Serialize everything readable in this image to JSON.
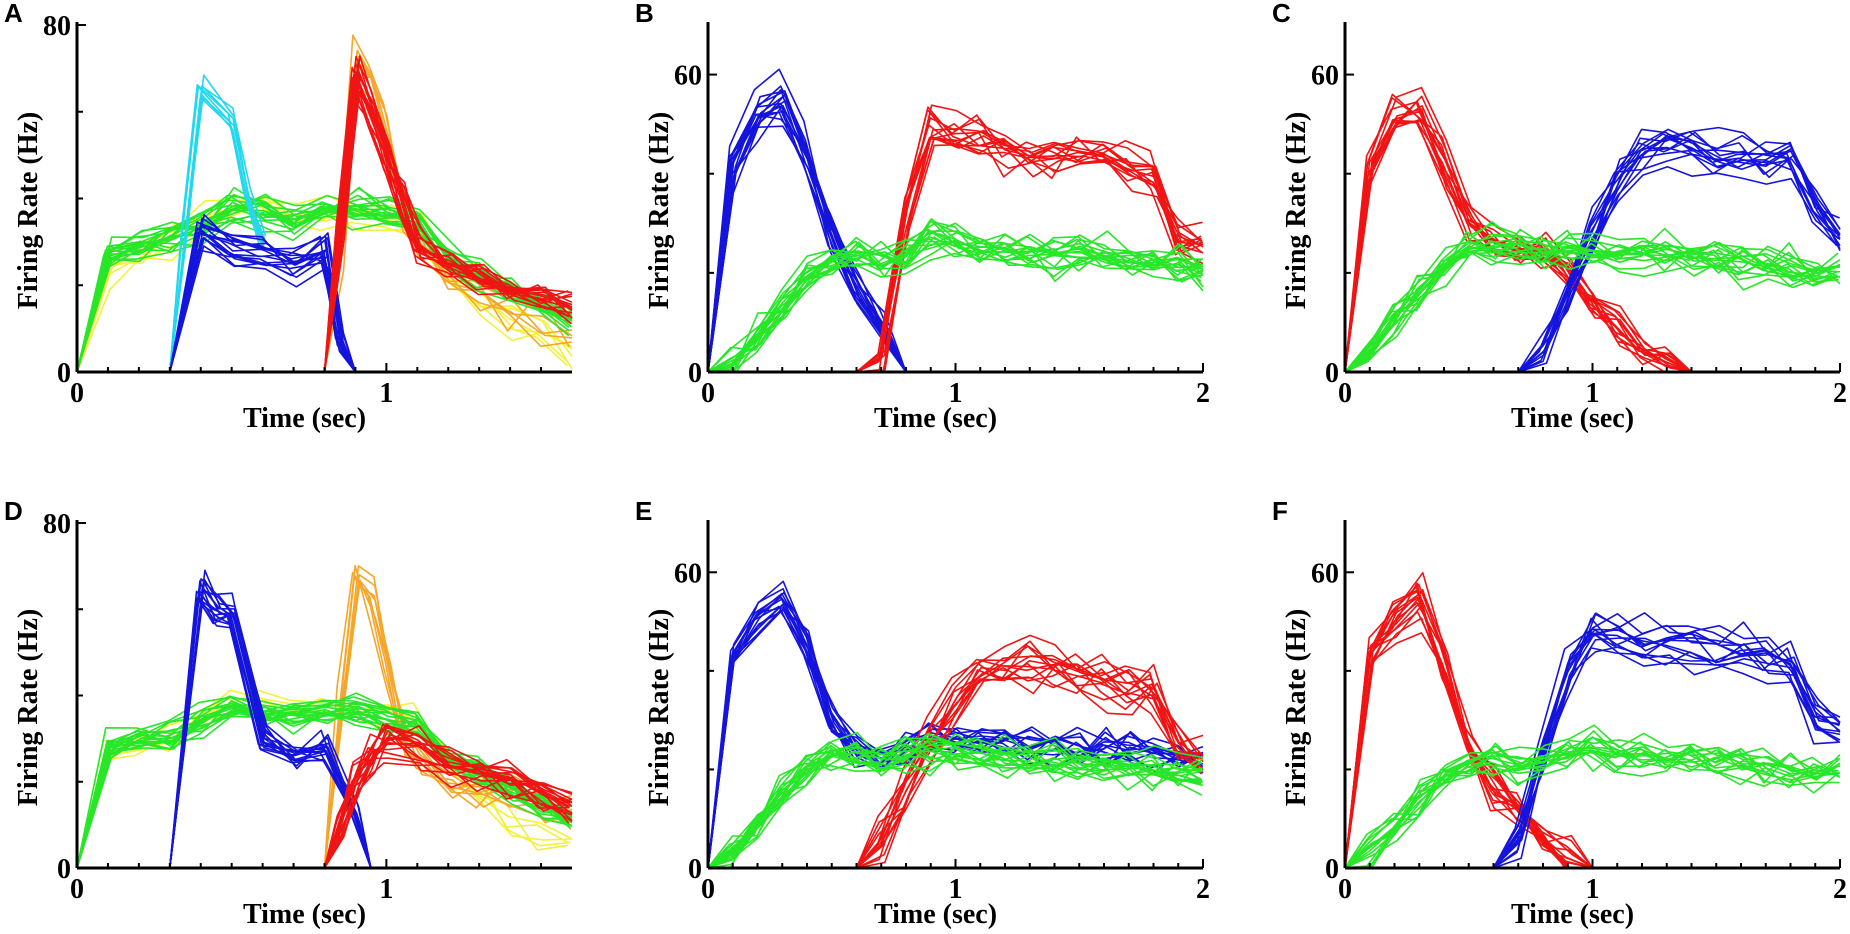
{
  "colors": {
    "cyan": "#22d8ee",
    "blue": "#1414dc",
    "red": "#f01414",
    "green": "#28e628",
    "yellow": "#f2f23a",
    "orange": "#f5a62b"
  },
  "chart_data": [
    {
      "panel": "A",
      "type": "line",
      "xlabel": "Time (sec)",
      "ylabel": "Firing Rate (Hz)",
      "xlim": [
        0,
        1.6
      ],
      "ylim": [
        0,
        80
      ],
      "xticks": [
        0,
        1
      ],
      "xtick_labels": [
        "0",
        "1"
      ],
      "yticks": [
        0,
        80
      ],
      "ytick_labels": [
        "0",
        "80"
      ],
      "yminor": [
        20,
        40,
        60
      ],
      "families": [
        {
          "color": "yellow",
          "count": 6,
          "spread": 3,
          "x": [
            0,
            0.1,
            0.2,
            0.3,
            0.4,
            0.5,
            0.6,
            0.7,
            0.8,
            0.9,
            1.0,
            1.1,
            1.2,
            1.3,
            1.4,
            1.5,
            1.6
          ],
          "y": [
            0,
            24,
            27,
            30,
            34,
            37,
            38,
            36,
            36,
            36,
            36,
            34,
            22,
            16,
            11,
            8,
            4
          ]
        },
        {
          "color": "orange",
          "count": 6,
          "spread": 4,
          "x": [
            0,
            0.7,
            0.8,
            0.85,
            0.9,
            0.95,
            1.0,
            1.05,
            1.1,
            1.2,
            1.3,
            1.4,
            1.5,
            1.6
          ],
          "y": [
            0,
            0,
            0,
            28,
            73,
            68,
            56,
            40,
            30,
            22,
            18,
            14,
            12,
            10
          ]
        },
        {
          "color": "green",
          "count": 20,
          "spread": 2.5,
          "x": [
            0,
            0.1,
            0.2,
            0.3,
            0.4,
            0.5,
            0.6,
            0.7,
            0.8,
            0.9,
            1.0,
            1.1,
            1.2,
            1.3,
            1.4,
            1.5,
            1.6
          ],
          "y": [
            0,
            27,
            29,
            31,
            34,
            38,
            37,
            35,
            37,
            38,
            37,
            36,
            26,
            22,
            18,
            15,
            12
          ]
        },
        {
          "color": "cyan",
          "count": 8,
          "spread": 1.8,
          "x": [
            0,
            0.3,
            0.35,
            0.4,
            0.5,
            0.55,
            0.6
          ],
          "y": [
            0,
            0,
            32,
            64,
            57,
            40,
            28
          ]
        },
        {
          "color": "blue",
          "count": 16,
          "spread": 3,
          "x": [
            0,
            0.2,
            0.3,
            0.4,
            0.5,
            0.6,
            0.7,
            0.8,
            0.85,
            0.9,
            1.0
          ],
          "y": [
            0,
            0,
            0,
            33,
            29,
            27,
            25,
            28,
            7,
            0,
            0
          ]
        },
        {
          "color": "red",
          "count": 18,
          "spread": 3,
          "x": [
            0,
            0.8,
            0.85,
            0.9,
            0.95,
            1.0,
            1.05,
            1.1,
            1.2,
            1.3,
            1.4,
            1.5,
            1.6
          ],
          "y": [
            0,
            0,
            34,
            69,
            60,
            50,
            40,
            29,
            25,
            22,
            19,
            17,
            15
          ]
        }
      ]
    },
    {
      "panel": "B",
      "type": "line",
      "xlabel": "Time (sec)",
      "ylabel": "Firing Rate (Hz)",
      "xlim": [
        0,
        2
      ],
      "ylim": [
        0,
        70
      ],
      "xticks": [
        0,
        1,
        2
      ],
      "xtick_labels": [
        "0",
        "1",
        "2"
      ],
      "yticks": [
        0,
        60
      ],
      "ytick_labels": [
        "0",
        "60"
      ],
      "yminor": [
        20,
        40
      ],
      "families": [
        {
          "color": "blue",
          "count": 16,
          "spread": 3,
          "x": [
            0,
            0.1,
            0.2,
            0.3,
            0.4,
            0.5,
            0.6,
            0.7,
            0.8,
            0.9
          ],
          "y": [
            0,
            42,
            52,
            55,
            44,
            27,
            17,
            10,
            0,
            0
          ]
        },
        {
          "color": "red",
          "count": 14,
          "spread": 3,
          "x": [
            0,
            0.6,
            0.7,
            0.8,
            0.9,
            1.0,
            1.1,
            1.2,
            1.3,
            1.4,
            1.5,
            1.6,
            1.7,
            1.8,
            1.9,
            2.0
          ],
          "y": [
            0,
            0,
            2,
            32,
            50,
            47,
            47,
            45,
            44,
            43,
            44,
            44,
            42,
            39,
            27,
            25
          ]
        },
        {
          "color": "green",
          "count": 18,
          "spread": 3,
          "x": [
            0,
            0.1,
            0.2,
            0.3,
            0.4,
            0.5,
            0.6,
            0.7,
            0.8,
            0.9,
            1.0,
            1.1,
            1.2,
            1.3,
            1.4,
            1.5,
            1.6,
            1.7,
            1.8,
            1.9,
            2.0
          ],
          "y": [
            0,
            2,
            7,
            13,
            19,
            22,
            23,
            22,
            23,
            27,
            26,
            25,
            24,
            24,
            23,
            23,
            23,
            22,
            22,
            21,
            20
          ]
        }
      ]
    },
    {
      "panel": "C",
      "type": "line",
      "xlabel": "Time (sec)",
      "ylabel": "Firing Rate (Hz)",
      "xlim": [
        0,
        2
      ],
      "ylim": [
        0,
        70
      ],
      "xticks": [
        0,
        1,
        2
      ],
      "xtick_labels": [
        "0",
        "1",
        "2"
      ],
      "yticks": [
        0,
        60
      ],
      "ytick_labels": [
        "0",
        "60"
      ],
      "yminor": [
        20,
        40
      ],
      "families": [
        {
          "color": "red",
          "count": 14,
          "spread": 3,
          "x": [
            0,
            0.1,
            0.2,
            0.3,
            0.4,
            0.5,
            0.6,
            0.7,
            0.8,
            0.9,
            1.0,
            1.1,
            1.2,
            1.3,
            1.4,
            1.5
          ],
          "y": [
            0,
            40,
            50,
            52,
            42,
            30,
            26,
            25,
            24,
            20,
            14,
            9,
            5,
            2,
            0,
            0
          ]
        },
        {
          "color": "blue",
          "count": 14,
          "spread": 3,
          "x": [
            0,
            0.7,
            0.8,
            0.9,
            1.0,
            1.1,
            1.2,
            1.3,
            1.4,
            1.5,
            1.6,
            1.7,
            1.8,
            1.9,
            2.0
          ],
          "y": [
            0,
            0,
            4,
            16,
            28,
            38,
            44,
            45,
            45,
            44,
            43,
            42,
            43,
            33,
            27
          ]
        },
        {
          "color": "green",
          "count": 18,
          "spread": 3,
          "x": [
            0,
            0.1,
            0.2,
            0.3,
            0.4,
            0.5,
            0.6,
            0.7,
            0.8,
            0.9,
            1.0,
            1.1,
            1.2,
            1.3,
            1.4,
            1.5,
            1.6,
            1.7,
            1.8,
            1.9,
            2.0
          ],
          "y": [
            0,
            4,
            10,
            16,
            21,
            25,
            26,
            26,
            25,
            25,
            24,
            24,
            24,
            24,
            23,
            23,
            22,
            22,
            21,
            20,
            20
          ]
        }
      ]
    },
    {
      "panel": "D",
      "type": "line",
      "xlabel": "Time (sec)",
      "ylabel": "Firing Rate (Hz)",
      "xlim": [
        0,
        1.6
      ],
      "ylim": [
        0,
        80
      ],
      "xticks": [
        0,
        1
      ],
      "xtick_labels": [
        "0",
        "1"
      ],
      "yticks": [
        0,
        80
      ],
      "ytick_labels": [
        "0",
        "80"
      ],
      "yminor": [
        20,
        40,
        60
      ],
      "families": [
        {
          "color": "yellow",
          "count": 5,
          "spread": 3,
          "x": [
            0,
            0.1,
            0.2,
            0.3,
            0.4,
            0.5,
            0.6,
            0.7,
            0.8,
            0.9,
            1.0,
            1.1,
            1.2,
            1.3,
            1.4,
            1.5,
            1.6
          ],
          "y": [
            0,
            26,
            28,
            30,
            34,
            37,
            38,
            36,
            37,
            36,
            35,
            33,
            24,
            18,
            12,
            8,
            5
          ]
        },
        {
          "color": "orange",
          "count": 8,
          "spread": 4,
          "x": [
            0,
            0.8,
            0.85,
            0.9,
            0.95,
            1.0,
            1.05,
            1.1,
            1.2,
            1.3,
            1.4,
            1.5,
            1.6
          ],
          "y": [
            0,
            0,
            40,
            68,
            62,
            46,
            30,
            24,
            20,
            18,
            16,
            14,
            12
          ]
        },
        {
          "color": "green",
          "count": 20,
          "spread": 2.5,
          "x": [
            0,
            0.1,
            0.2,
            0.3,
            0.4,
            0.5,
            0.6,
            0.7,
            0.8,
            0.9,
            1.0,
            1.1,
            1.2,
            1.3,
            1.4,
            1.5,
            1.6
          ],
          "y": [
            0,
            28,
            30,
            31,
            34,
            38,
            36,
            35,
            36,
            37,
            35,
            33,
            26,
            22,
            18,
            15,
            12
          ]
        },
        {
          "color": "blue",
          "count": 16,
          "spread": 2.5,
          "x": [
            0,
            0.2,
            0.3,
            0.4,
            0.45,
            0.5,
            0.6,
            0.7,
            0.8,
            0.9,
            0.95,
            1.0
          ],
          "y": [
            0,
            0,
            0,
            65,
            61,
            58,
            30,
            26,
            28,
            12,
            0,
            0
          ]
        },
        {
          "color": "red",
          "count": 18,
          "spread": 3.5,
          "x": [
            0,
            0.8,
            0.85,
            0.9,
            0.95,
            1.0,
            1.1,
            1.2,
            1.3,
            1.4,
            1.5,
            1.6
          ],
          "y": [
            0,
            0,
            10,
            20,
            26,
            30,
            27,
            24,
            22,
            20,
            17,
            14
          ]
        }
      ]
    },
    {
      "panel": "E",
      "type": "line",
      "xlabel": "Time (sec)",
      "ylabel": "Firing Rate (Hz)",
      "xlim": [
        0,
        2
      ],
      "ylim": [
        0,
        70
      ],
      "xticks": [
        0,
        1,
        2
      ],
      "xtick_labels": [
        "0",
        "1",
        "2"
      ],
      "yticks": [
        0,
        60
      ],
      "ytick_labels": [
        "0",
        "60"
      ],
      "yminor": [
        20,
        40
      ],
      "families": [
        {
          "color": "blue",
          "count": 14,
          "spread": 3,
          "x": [
            0,
            0.1,
            0.2,
            0.3,
            0.4,
            0.5,
            0.6,
            0.7,
            0.8,
            0.9,
            1.0,
            1.1,
            1.2,
            1.3,
            1.4,
            1.5,
            1.6,
            1.7,
            1.8,
            1.9,
            2.0
          ],
          "y": [
            0,
            42,
            50,
            54,
            44,
            30,
            24,
            22,
            24,
            27,
            26,
            25,
            26,
            25,
            25,
            24,
            24,
            24,
            23,
            22,
            22
          ]
        },
        {
          "color": "red",
          "count": 14,
          "spread": 4,
          "x": [
            0,
            0.6,
            0.7,
            0.8,
            0.9,
            1.0,
            1.1,
            1.2,
            1.3,
            1.4,
            1.5,
            1.6,
            1.7,
            1.8,
            1.9,
            2.0
          ],
          "y": [
            0,
            0,
            6,
            16,
            26,
            34,
            40,
            42,
            43,
            42,
            40,
            39,
            38,
            37,
            26,
            22
          ]
        },
        {
          "color": "green",
          "count": 18,
          "spread": 3,
          "x": [
            0,
            0.1,
            0.2,
            0.3,
            0.4,
            0.5,
            0.6,
            0.7,
            0.8,
            0.9,
            1.0,
            1.1,
            1.2,
            1.3,
            1.4,
            1.5,
            1.6,
            1.7,
            1.8,
            1.9,
            2.0
          ],
          "y": [
            0,
            3,
            9,
            15,
            20,
            23,
            23,
            22,
            23,
            24,
            24,
            23,
            23,
            22,
            22,
            21,
            21,
            20,
            20,
            19,
            19
          ]
        }
      ]
    },
    {
      "panel": "F",
      "type": "line",
      "xlabel": "Time (sec)",
      "ylabel": "Firing Rate (Hz)",
      "xlim": [
        0,
        2
      ],
      "ylim": [
        0,
        70
      ],
      "xticks": [
        0,
        1,
        2
      ],
      "xtick_labels": [
        "0",
        "1",
        "2"
      ],
      "yticks": [
        0,
        60
      ],
      "ytick_labels": [
        "0",
        "60"
      ],
      "yminor": [
        20,
        40
      ],
      "families": [
        {
          "color": "red",
          "count": 16,
          "spread": 3.5,
          "x": [
            0,
            0.1,
            0.2,
            0.3,
            0.4,
            0.5,
            0.6,
            0.7,
            0.8,
            0.9,
            1.0
          ],
          "y": [
            0,
            42,
            50,
            54,
            40,
            24,
            17,
            12,
            6,
            2,
            0
          ]
        },
        {
          "color": "blue",
          "count": 14,
          "spread": 3,
          "x": [
            0,
            0.6,
            0.7,
            0.8,
            0.9,
            1.0,
            1.1,
            1.2,
            1.3,
            1.4,
            1.5,
            1.6,
            1.7,
            1.8,
            1.9,
            2.0
          ],
          "y": [
            0,
            0,
            6,
            24,
            40,
            48,
            47,
            46,
            46,
            45,
            45,
            44,
            43,
            42,
            30,
            28
          ]
        },
        {
          "color": "green",
          "count": 16,
          "spread": 3,
          "x": [
            0,
            0.1,
            0.2,
            0.3,
            0.4,
            0.5,
            0.6,
            0.7,
            0.8,
            0.9,
            1.0,
            1.1,
            1.2,
            1.3,
            1.4,
            1.5,
            1.6,
            1.7,
            1.8,
            1.9,
            2.0
          ],
          "y": [
            0,
            3,
            8,
            14,
            19,
            21,
            22,
            21,
            22,
            24,
            24,
            23,
            23,
            22,
            22,
            21,
            21,
            21,
            20,
            20,
            20
          ]
        }
      ]
    }
  ]
}
